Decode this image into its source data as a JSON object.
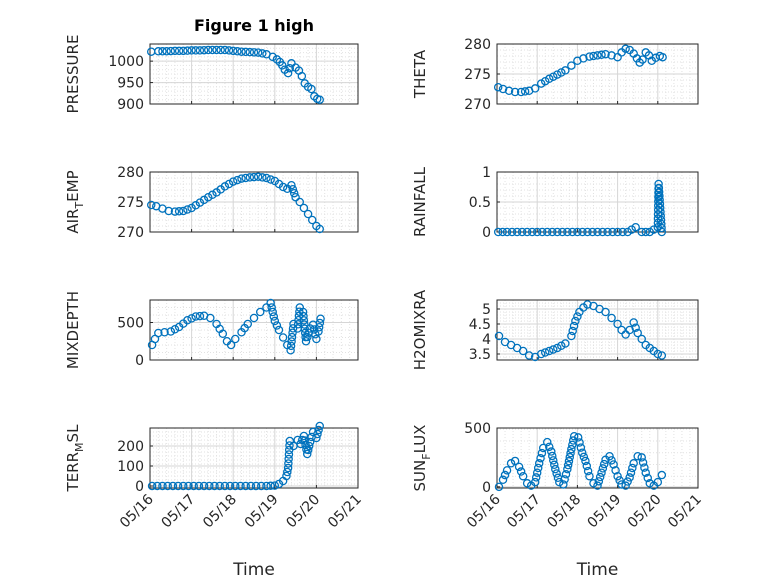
{
  "chart_data": [
    {
      "type": "scatter",
      "title": "Figure 1 high",
      "ylabel": "PRESSURE",
      "xlabel": "",
      "xlim": [
        "05/16",
        "05/21"
      ],
      "ylim": [
        900,
        1040
      ],
      "yticks": [
        900,
        950,
        1000
      ],
      "yticklabels": [
        "900",
        "950",
        "1000"
      ],
      "xticklabels": [
        "05/16",
        "05/17",
        "05/18",
        "05/19",
        "05/20",
        "05/21"
      ],
      "show_xticklabels": false,
      "grid": true,
      "marker_color": "#0072BD",
      "points": [
        [
          0.03,
          1022
        ],
        [
          0.2,
          1023
        ],
        [
          0.4,
          1023
        ],
        [
          0.6,
          1024
        ],
        [
          0.8,
          1024
        ],
        [
          1.0,
          1025
        ],
        [
          1.2,
          1025
        ],
        [
          1.4,
          1026
        ],
        [
          1.6,
          1026
        ],
        [
          1.8,
          1026
        ],
        [
          2.0,
          1024
        ],
        [
          2.2,
          1022
        ],
        [
          2.4,
          1021
        ],
        [
          2.6,
          1020
        ],
        [
          2.8,
          1016
        ],
        [
          2.95,
          1010
        ],
        [
          3.05,
          1004
        ],
        [
          3.12,
          998
        ],
        [
          3.18,
          990
        ],
        [
          3.24,
          980
        ],
        [
          3.32,
          972
        ],
        [
          3.4,
          995
        ],
        [
          3.5,
          985
        ],
        [
          3.58,
          978
        ],
        [
          3.65,
          965
        ],
        [
          3.72,
          948
        ],
        [
          3.8,
          940
        ],
        [
          3.88,
          935
        ],
        [
          3.95,
          918
        ],
        [
          4.02,
          912
        ],
        [
          4.08,
          910
        ]
      ]
    },
    {
      "type": "scatter",
      "title": "",
      "ylabel": "THETA",
      "xlabel": "",
      "xlim": [
        "05/16",
        "05/21"
      ],
      "ylim": [
        270,
        280
      ],
      "yticks": [
        270,
        275,
        280
      ],
      "yticklabels": [
        "270",
        "275",
        "280"
      ],
      "xticklabels": [
        "05/16",
        "05/17",
        "05/18",
        "05/19",
        "05/20",
        "05/21"
      ],
      "show_xticklabels": false,
      "grid": true,
      "marker_color": "#0072BD",
      "points": [
        [
          0.03,
          272.8
        ],
        [
          0.15,
          272.5
        ],
        [
          0.3,
          272.2
        ],
        [
          0.45,
          272
        ],
        [
          0.6,
          272
        ],
        [
          0.8,
          272.2
        ],
        [
          0.95,
          272.6
        ],
        [
          1.1,
          273.4
        ],
        [
          1.3,
          274.2
        ],
        [
          1.5,
          274.9
        ],
        [
          1.7,
          275.6
        ],
        [
          1.85,
          276.4
        ],
        [
          2.0,
          277.2
        ],
        [
          2.15,
          277.6
        ],
        [
          2.3,
          277.9
        ],
        [
          2.5,
          278.1
        ],
        [
          2.7,
          278.3
        ],
        [
          2.85,
          278.1
        ],
        [
          3.0,
          277.8
        ],
        [
          3.1,
          278.6
        ],
        [
          3.2,
          279.2
        ],
        [
          3.3,
          279.0
        ],
        [
          3.4,
          278.4
        ],
        [
          3.48,
          277.6
        ],
        [
          3.55,
          276.9
        ],
        [
          3.62,
          277.4
        ],
        [
          3.7,
          278.6
        ],
        [
          3.78,
          278.1
        ],
        [
          3.85,
          277.2
        ],
        [
          3.95,
          277.7
        ],
        [
          4.05,
          278.0
        ],
        [
          4.12,
          277.8
        ]
      ]
    },
    {
      "type": "scatter",
      "title": "",
      "ylabel": "AIR_TEMP",
      "ylabel_main": "AIR",
      "ylabel_sub": "T",
      "ylabel_rest": "EMP",
      "xlabel": "",
      "xlim": [
        "05/16",
        "05/21"
      ],
      "ylim": [
        270,
        280
      ],
      "yticks": [
        270,
        275,
        280
      ],
      "yticklabels": [
        "270",
        "275",
        "280"
      ],
      "xticklabels": [
        "05/16",
        "05/17",
        "05/18",
        "05/19",
        "05/20",
        "05/21"
      ],
      "show_xticklabels": false,
      "grid": true,
      "marker_color": "#0072BD",
      "points": [
        [
          0.03,
          274.5
        ],
        [
          0.15,
          274.3
        ],
        [
          0.3,
          273.9
        ],
        [
          0.45,
          273.5
        ],
        [
          0.6,
          273.4
        ],
        [
          0.8,
          273.5
        ],
        [
          1.0,
          274
        ],
        [
          1.2,
          274.9
        ],
        [
          1.4,
          275.8
        ],
        [
          1.6,
          276.6
        ],
        [
          1.8,
          277.6
        ],
        [
          2.0,
          278.4
        ],
        [
          2.2,
          278.9
        ],
        [
          2.4,
          279.1
        ],
        [
          2.6,
          279.2
        ],
        [
          2.8,
          279.0
        ],
        [
          3.0,
          278.5
        ],
        [
          3.1,
          278.0
        ],
        [
          3.2,
          277.5
        ],
        [
          3.3,
          277.2
        ],
        [
          3.4,
          277.8
        ],
        [
          3.5,
          275.8
        ],
        [
          3.6,
          275.0
        ],
        [
          3.7,
          274.0
        ],
        [
          3.8,
          273.0
        ],
        [
          3.9,
          272.0
        ],
        [
          4.0,
          271.0
        ],
        [
          4.08,
          270.5
        ]
      ]
    },
    {
      "type": "scatter",
      "title": "",
      "ylabel": "RAINFALL",
      "xlabel": "",
      "xlim": [
        "05/16",
        "05/21"
      ],
      "ylim": [
        0,
        1
      ],
      "yticks": [
        0,
        0.5,
        1
      ],
      "yticklabels": [
        "0",
        "0.5",
        "1"
      ],
      "xticklabels": [
        "05/16",
        "05/17",
        "05/18",
        "05/19",
        "05/20",
        "05/21"
      ],
      "show_xticklabels": false,
      "grid": true,
      "marker_color": "#0072BD",
      "points": [
        [
          0.03,
          0
        ],
        [
          0.25,
          0
        ],
        [
          0.5,
          0
        ],
        [
          0.75,
          0
        ],
        [
          1.0,
          0
        ],
        [
          1.25,
          0
        ],
        [
          1.5,
          0
        ],
        [
          1.75,
          0
        ],
        [
          2.0,
          0
        ],
        [
          2.25,
          0
        ],
        [
          2.5,
          0
        ],
        [
          2.75,
          0
        ],
        [
          3.0,
          0
        ],
        [
          3.25,
          0
        ],
        [
          3.45,
          0.08
        ],
        [
          3.6,
          0
        ],
        [
          3.8,
          0
        ],
        [
          4.0,
          0.08
        ],
        [
          4.02,
          0.8
        ],
        [
          4.1,
          0
        ]
      ]
    },
    {
      "type": "scatter",
      "title": "",
      "ylabel": "MIXDEPTH",
      "xlabel": "",
      "xlim": [
        "05/16",
        "05/21"
      ],
      "ylim": [
        0,
        800
      ],
      "yticks": [
        0,
        500
      ],
      "yticklabels": [
        "0",
        "500"
      ],
      "xticklabels": [
        "05/16",
        "05/17",
        "05/18",
        "05/19",
        "05/20",
        "05/21"
      ],
      "show_xticklabels": false,
      "grid": true,
      "marker_color": "#0072BD",
      "points": [
        [
          0.05,
          200
        ],
        [
          0.12,
          280
        ],
        [
          0.2,
          360
        ],
        [
          0.35,
          370
        ],
        [
          0.5,
          380
        ],
        [
          0.7,
          440
        ],
        [
          0.9,
          530
        ],
        [
          1.1,
          580
        ],
        [
          1.3,
          590
        ],
        [
          1.45,
          560
        ],
        [
          1.6,
          480
        ],
        [
          1.75,
          350
        ],
        [
          1.85,
          250
        ],
        [
          1.95,
          200
        ],
        [
          2.05,
          280
        ],
        [
          2.2,
          370
        ],
        [
          2.35,
          480
        ],
        [
          2.5,
          560
        ],
        [
          2.65,
          640
        ],
        [
          2.8,
          700
        ],
        [
          2.9,
          760
        ],
        [
          3.0,
          520
        ],
        [
          3.1,
          400
        ],
        [
          3.2,
          300
        ],
        [
          3.3,
          200
        ],
        [
          3.38,
          130
        ],
        [
          3.45,
          480
        ],
        [
          3.55,
          420
        ],
        [
          3.6,
          700
        ],
        [
          3.68,
          640
        ],
        [
          3.75,
          250
        ],
        [
          3.85,
          420
        ],
        [
          3.92,
          470
        ],
        [
          4.0,
          280
        ],
        [
          4.05,
          380
        ],
        [
          4.1,
          550
        ]
      ]
    },
    {
      "type": "scatter",
      "title": "",
      "ylabel": "H2OMIXRA",
      "xlabel": "",
      "xlim": [
        "05/16",
        "05/21"
      ],
      "ylim": [
        3.3,
        5.3
      ],
      "yticks": [
        3.5,
        4,
        4.5,
        5
      ],
      "yticklabels": [
        "3.5",
        "4",
        "4.5",
        "5"
      ],
      "xticklabels": [
        "05/16",
        "05/17",
        "05/18",
        "05/19",
        "05/20",
        "05/21"
      ],
      "show_xticklabels": false,
      "grid": true,
      "marker_color": "#0072BD",
      "points": [
        [
          0.05,
          4.1
        ],
        [
          0.2,
          3.9
        ],
        [
          0.35,
          3.8
        ],
        [
          0.5,
          3.7
        ],
        [
          0.65,
          3.6
        ],
        [
          0.8,
          3.45
        ],
        [
          0.95,
          3.4
        ],
        [
          1.1,
          3.5
        ],
        [
          1.3,
          3.6
        ],
        [
          1.5,
          3.7
        ],
        [
          1.7,
          3.85
        ],
        [
          1.85,
          4.1
        ],
        [
          1.95,
          4.6
        ],
        [
          2.05,
          4.9
        ],
        [
          2.15,
          5.05
        ],
        [
          2.25,
          5.15
        ],
        [
          2.4,
          5.1
        ],
        [
          2.55,
          5.0
        ],
        [
          2.7,
          4.9
        ],
        [
          2.85,
          4.7
        ],
        [
          3.0,
          4.5
        ],
        [
          3.1,
          4.3
        ],
        [
          3.2,
          4.15
        ],
        [
          3.3,
          4.3
        ],
        [
          3.4,
          4.55
        ],
        [
          3.5,
          4.2
        ],
        [
          3.6,
          4.0
        ],
        [
          3.7,
          3.8
        ],
        [
          3.8,
          3.7
        ],
        [
          3.9,
          3.6
        ],
        [
          4.0,
          3.5
        ],
        [
          4.1,
          3.45
        ]
      ]
    },
    {
      "type": "scatter",
      "title": "",
      "ylabel": "TERR_MSL",
      "ylabel_main": "TERR",
      "ylabel_sub": "M",
      "ylabel_rest": "SL",
      "xlabel": "Time",
      "xlim": [
        "05/16",
        "05/21"
      ],
      "ylim": [
        -10,
        290
      ],
      "yticks": [
        0,
        100,
        200
      ],
      "yticklabels": [
        "0",
        "100",
        "200"
      ],
      "xticklabels": [
        "05/16",
        "05/17",
        "05/18",
        "05/19",
        "05/20",
        "05/21"
      ],
      "show_xticklabels": true,
      "grid": true,
      "marker_color": "#0072BD",
      "points": [
        [
          0.05,
          0
        ],
        [
          0.3,
          0
        ],
        [
          0.55,
          0
        ],
        [
          0.8,
          0
        ],
        [
          1.05,
          0
        ],
        [
          1.3,
          0
        ],
        [
          1.55,
          0
        ],
        [
          1.8,
          0
        ],
        [
          2.05,
          0
        ],
        [
          2.3,
          0
        ],
        [
          2.55,
          0
        ],
        [
          2.8,
          0
        ],
        [
          3.0,
          2
        ],
        [
          3.1,
          10
        ],
        [
          3.2,
          25
        ],
        [
          3.28,
          50
        ],
        [
          3.32,
          90
        ],
        [
          3.36,
          225
        ],
        [
          3.45,
          200
        ],
        [
          3.55,
          230
        ],
        [
          3.62,
          210
        ],
        [
          3.7,
          250
        ],
        [
          3.78,
          160
        ],
        [
          3.85,
          220
        ],
        [
          3.92,
          270
        ],
        [
          4.0,
          240
        ],
        [
          4.08,
          300
        ]
      ]
    },
    {
      "type": "scatter",
      "title": "",
      "ylabel": "SUN_FLUX",
      "ylabel_main": "SUN",
      "ylabel_sub": "F",
      "ylabel_rest": "LUX",
      "xlabel": "Time",
      "xlim": [
        "05/16",
        "05/21"
      ],
      "ylim": [
        -10,
        500
      ],
      "yticks": [
        0,
        500
      ],
      "yticklabels": [
        "0",
        "500"
      ],
      "xticklabels": [
        "05/16",
        "05/17",
        "05/18",
        "05/19",
        "05/20",
        "05/21"
      ],
      "show_xticklabels": true,
      "grid": true,
      "marker_color": "#0072BD",
      "points": [
        [
          0.05,
          0
        ],
        [
          0.15,
          60
        ],
        [
          0.25,
          140
        ],
        [
          0.35,
          200
        ],
        [
          0.45,
          220
        ],
        [
          0.55,
          170
        ],
        [
          0.65,
          90
        ],
        [
          0.75,
          30
        ],
        [
          0.85,
          10
        ],
        [
          0.95,
          40
        ],
        [
          1.05,
          200
        ],
        [
          1.15,
          330
        ],
        [
          1.25,
          380
        ],
        [
          1.35,
          300
        ],
        [
          1.45,
          150
        ],
        [
          1.55,
          40
        ],
        [
          1.65,
          20
        ],
        [
          1.75,
          150
        ],
        [
          1.85,
          320
        ],
        [
          1.92,
          430
        ],
        [
          2.02,
          420
        ],
        [
          2.12,
          290
        ],
        [
          2.2,
          220
        ],
        [
          2.3,
          90
        ],
        [
          2.4,
          30
        ],
        [
          2.5,
          10
        ],
        [
          2.6,
          120
        ],
        [
          2.7,
          230
        ],
        [
          2.8,
          260
        ],
        [
          2.9,
          190
        ],
        [
          3.0,
          90
        ],
        [
          3.1,
          20
        ],
        [
          3.2,
          10
        ],
        [
          3.3,
          80
        ],
        [
          3.4,
          200
        ],
        [
          3.5,
          260
        ],
        [
          3.6,
          250
        ],
        [
          3.7,
          120
        ],
        [
          3.8,
          30
        ],
        [
          3.9,
          10
        ],
        [
          4.0,
          40
        ],
        [
          4.1,
          100
        ]
      ]
    }
  ]
}
